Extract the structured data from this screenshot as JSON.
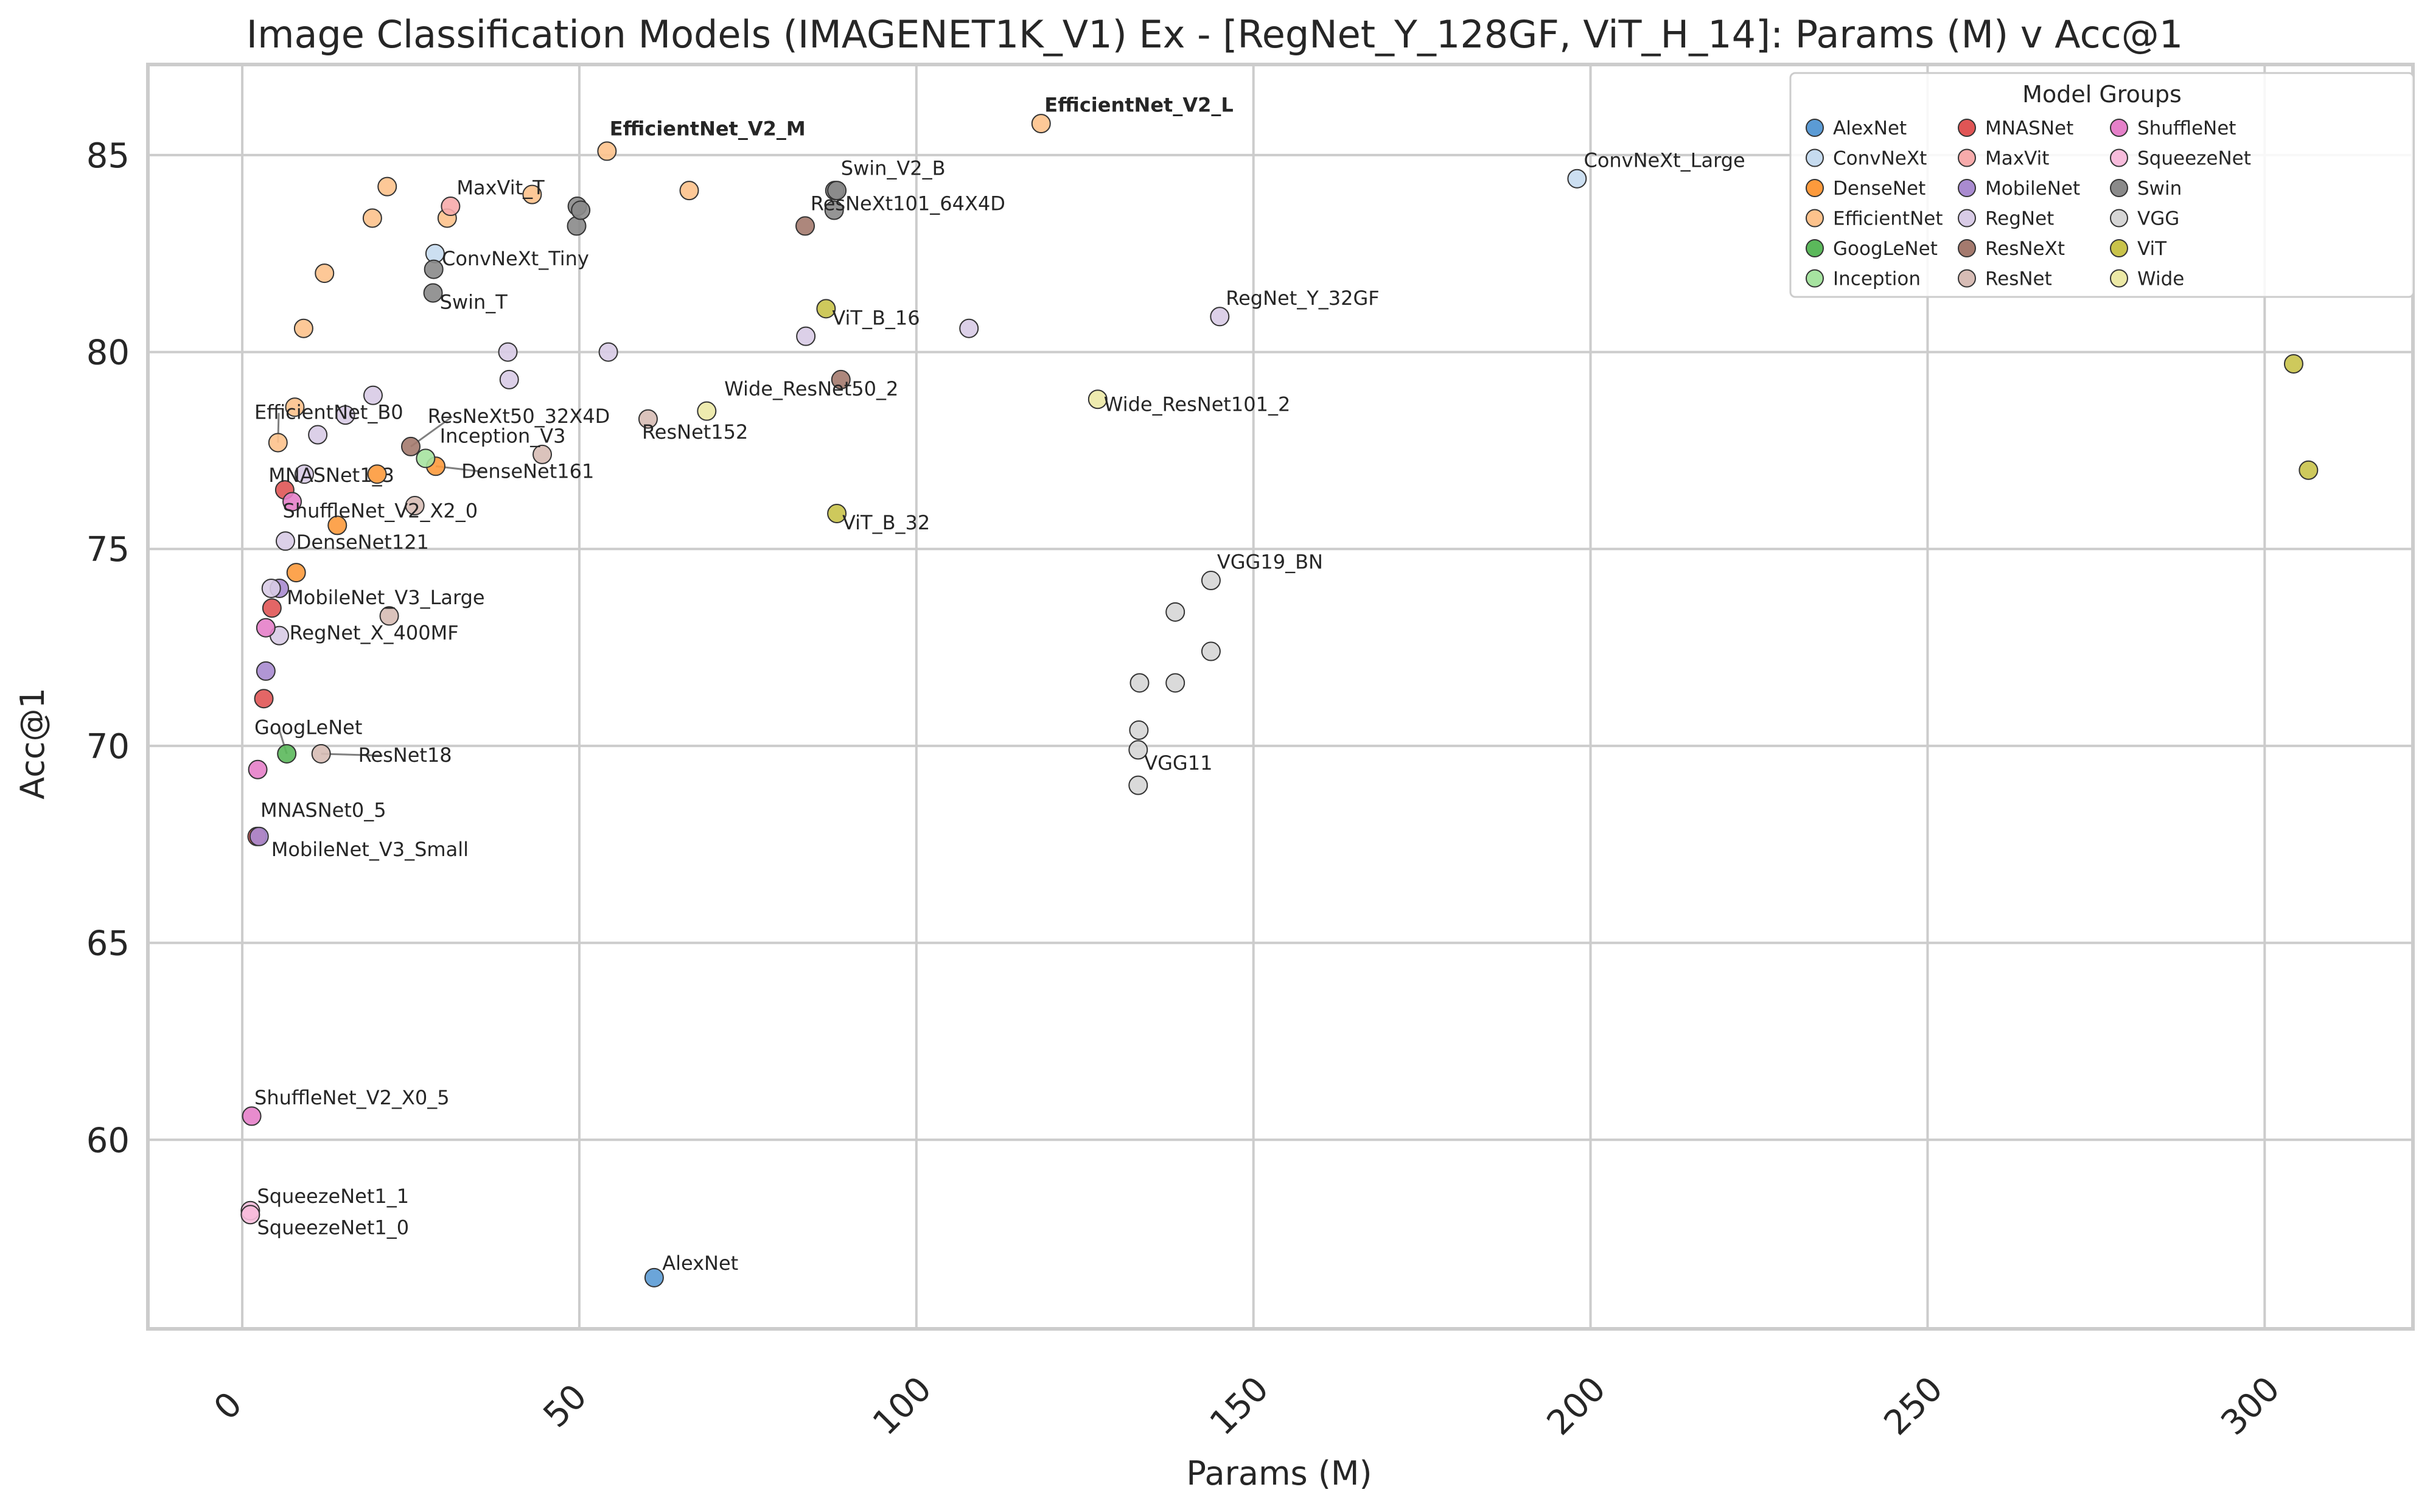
{
  "chart_data": {
    "type": "scatter",
    "title": "Image Classification Models (IMAGENET1K_V1) Ex - [RegNet_Y_128GF, ViT_H_14]: Params (M) v Acc@1",
    "xlabel": "Params (M)",
    "ylabel": "Acc@1",
    "xlim": [
      -14,
      322
    ],
    "ylim": [
      55.2,
      87.3
    ],
    "xticks": [
      "0",
      "50",
      "100",
      "150",
      "200",
      "250",
      "300"
    ],
    "yticks": [
      "60",
      "65",
      "70",
      "75",
      "80",
      "85"
    ],
    "grid": true,
    "legend": {
      "title": "Model Groups",
      "position": "top-right",
      "columns": 3
    },
    "groups": [
      {
        "name": "AlexNet",
        "color": "#5b9bd5"
      },
      {
        "name": "ConvNeXt",
        "color": "#c6dbef"
      },
      {
        "name": "DenseNet",
        "color": "#fd9a3c"
      },
      {
        "name": "EfficientNet",
        "color": "#fdc28c"
      },
      {
        "name": "GoogLeNet",
        "color": "#5bb85b"
      },
      {
        "name": "Inception",
        "color": "#a6e3a0"
      },
      {
        "name": "MNASNet",
        "color": "#e05555"
      },
      {
        "name": "MaxVit",
        "color": "#f7abab"
      },
      {
        "name": "MobileNet",
        "color": "#a98bd0"
      },
      {
        "name": "RegNet",
        "color": "#d8cbe6"
      },
      {
        "name": "ResNeXt",
        "color": "#a47a6e"
      },
      {
        "name": "ResNet",
        "color": "#d7bcb5"
      },
      {
        "name": "ShuffleNet",
        "color": "#e580c9"
      },
      {
        "name": "SqueezeNet",
        "color": "#f8bcdc"
      },
      {
        "name": "Swin",
        "color": "#8a8a8a"
      },
      {
        "name": "VGG",
        "color": "#d6d6d6"
      },
      {
        "name": "ViT",
        "color": "#c9c34a"
      },
      {
        "name": "Wide",
        "color": "#ece9a6"
      }
    ],
    "points": [
      {
        "x": 61.1,
        "y": 56.5,
        "group": "AlexNet",
        "label": "AlexNet",
        "lx": 62.3,
        "ly": 56.7
      },
      {
        "x": 198.0,
        "y": 84.4,
        "group": "ConvNeXt",
        "label": "ConvNeXt_Large",
        "lx": 199.0,
        "ly": 84.7
      },
      {
        "x": 28.6,
        "y": 82.5,
        "group": "ConvNeXt",
        "label": "ConvNeXt_Tiny",
        "lx": 29.6,
        "ly": 82.2
      },
      {
        "x": 8.0,
        "y": 74.4,
        "group": "DenseNet",
        "label": "DenseNet121",
        "lx": 8.0,
        "ly": 75.0
      },
      {
        "x": 28.7,
        "y": 77.1,
        "group": "DenseNet",
        "label": "DenseNet161",
        "lx": 32.5,
        "ly": 76.8
      },
      {
        "x": 14.1,
        "y": 75.6,
        "group": "DenseNet"
      },
      {
        "x": 20.0,
        "y": 76.9,
        "group": "DenseNet"
      },
      {
        "x": 54.1,
        "y": 85.1,
        "group": "EfficientNet",
        "label": "EfficientNet_V2_M",
        "lx": 54.5,
        "ly": 85.5,
        "bold": true
      },
      {
        "x": 118.5,
        "y": 85.8,
        "group": "EfficientNet",
        "label": "EfficientNet_V2_L",
        "lx": 119.0,
        "ly": 86.1,
        "bold": true
      },
      {
        "x": 5.3,
        "y": 77.7,
        "group": "EfficientNet",
        "label": "EfficientNet_B0",
        "lx": 1.8,
        "ly": 78.3
      },
      {
        "x": 7.8,
        "y": 78.6,
        "group": "EfficientNet"
      },
      {
        "x": 9.1,
        "y": 80.6,
        "group": "EfficientNet"
      },
      {
        "x": 12.2,
        "y": 82.0,
        "group": "EfficientNet"
      },
      {
        "x": 19.3,
        "y": 83.4,
        "group": "EfficientNet"
      },
      {
        "x": 30.4,
        "y": 83.4,
        "group": "EfficientNet"
      },
      {
        "x": 43.0,
        "y": 84.0,
        "group": "EfficientNet"
      },
      {
        "x": 66.3,
        "y": 84.1,
        "group": "EfficientNet"
      },
      {
        "x": 21.5,
        "y": 84.2,
        "group": "EfficientNet"
      },
      {
        "x": 6.6,
        "y": 69.8,
        "group": "GoogLeNet",
        "label": "GoogLeNet",
        "lx": 1.8,
        "ly": 70.3
      },
      {
        "x": 27.2,
        "y": 77.3,
        "group": "Inception",
        "label": "Inception_V3",
        "lx": 29.3,
        "ly": 77.7
      },
      {
        "x": 30.9,
        "y": 83.7,
        "group": "MaxVit",
        "label": "MaxVit_T",
        "lx": 31.8,
        "ly": 84.0
      },
      {
        "x": 2.2,
        "y": 67.7,
        "group": "MNASNet",
        "label": "MNASNet0_5",
        "lx": 2.7,
        "ly": 68.2
      },
      {
        "x": 3.2,
        "y": 71.2,
        "group": "MNASNet"
      },
      {
        "x": 4.4,
        "y": 73.5,
        "group": "MNASNet"
      },
      {
        "x": 6.3,
        "y": 76.5,
        "group": "MNASNet",
        "label": "MNASNet1_3",
        "lx": 3.9,
        "ly": 76.7
      },
      {
        "x": 2.5,
        "y": 67.7,
        "group": "MobileNet",
        "label": "MobileNet_V3_Small",
        "lx": 4.3,
        "ly": 67.2
      },
      {
        "x": 3.5,
        "y": 71.9,
        "group": "MobileNet"
      },
      {
        "x": 5.5,
        "y": 74.0,
        "group": "MobileNet",
        "label": "MobileNet_V3_Large",
        "lx": 6.6,
        "ly": 73.6
      },
      {
        "x": 145.0,
        "y": 80.9,
        "group": "RegNet",
        "label": "RegNet_Y_32GF",
        "lx": 145.9,
        "ly": 81.2
      },
      {
        "x": 5.5,
        "y": 72.8,
        "group": "RegNet",
        "label": "RegNet_X_400MF",
        "lx": 7.0,
        "ly": 72.7
      },
      {
        "x": 4.3,
        "y": 74.0,
        "group": "RegNet"
      },
      {
        "x": 6.4,
        "y": 75.2,
        "group": "RegNet"
      },
      {
        "x": 9.2,
        "y": 76.9,
        "group": "RegNet"
      },
      {
        "x": 11.2,
        "y": 77.9,
        "group": "RegNet"
      },
      {
        "x": 15.3,
        "y": 78.4,
        "group": "RegNet"
      },
      {
        "x": 19.4,
        "y": 78.9,
        "group": "RegNet"
      },
      {
        "x": 39.4,
        "y": 80.0,
        "group": "RegNet"
      },
      {
        "x": 39.6,
        "y": 79.3,
        "group": "RegNet"
      },
      {
        "x": 54.3,
        "y": 80.0,
        "group": "RegNet"
      },
      {
        "x": 83.6,
        "y": 80.4,
        "group": "RegNet"
      },
      {
        "x": 107.8,
        "y": 80.6,
        "group": "RegNet"
      },
      {
        "x": 25.0,
        "y": 77.6,
        "group": "ResNeXt",
        "label": "ResNeXt50_32X4D",
        "lx": 27.5,
        "ly": 78.2
      },
      {
        "x": 83.5,
        "y": 83.2,
        "group": "ResNeXt",
        "label": "ResNeXt101_64X4D",
        "lx": 84.3,
        "ly": 83.6
      },
      {
        "x": 88.8,
        "y": 79.3,
        "group": "ResNeXt"
      },
      {
        "x": 11.7,
        "y": 69.8,
        "group": "ResNet",
        "label": "ResNet18",
        "lx": 17.2,
        "ly": 69.6
      },
      {
        "x": 60.2,
        "y": 78.3,
        "group": "ResNet",
        "label": "ResNet152",
        "lx": 59.3,
        "ly": 77.8
      },
      {
        "x": 21.8,
        "y": 73.3,
        "group": "ResNet"
      },
      {
        "x": 25.6,
        "y": 76.1,
        "group": "ResNet"
      },
      {
        "x": 44.5,
        "y": 77.4,
        "group": "ResNet"
      },
      {
        "x": 1.4,
        "y": 60.6,
        "group": "ShuffleNet",
        "label": "ShuffleNet_V2_X0_5",
        "lx": 1.8,
        "ly": 60.9
      },
      {
        "x": 2.3,
        "y": 69.4,
        "group": "ShuffleNet"
      },
      {
        "x": 3.5,
        "y": 73.0,
        "group": "ShuffleNet"
      },
      {
        "x": 7.4,
        "y": 76.2,
        "group": "ShuffleNet",
        "label": "ShuffleNet_V2_X2_0",
        "lx": 6.0,
        "ly": 75.8
      },
      {
        "x": 1.2,
        "y": 58.2,
        "group": "SqueezeNet",
        "label": "SqueezeNet1_1",
        "lx": 2.2,
        "ly": 58.4
      },
      {
        "x": 1.2,
        "y": 58.1,
        "group": "SqueezeNet",
        "label": "SqueezeNet1_0",
        "lx": 2.2,
        "ly": 57.6
      },
      {
        "x": 28.3,
        "y": 81.5,
        "group": "Swin",
        "label": "Swin_T",
        "lx": 29.3,
        "ly": 81.1
      },
      {
        "x": 87.9,
        "y": 84.1,
        "group": "Swin",
        "label": "Swin_V2_B",
        "lx": 88.8,
        "ly": 84.5
      },
      {
        "x": 28.4,
        "y": 82.1,
        "group": "Swin"
      },
      {
        "x": 49.6,
        "y": 83.2,
        "group": "Swin"
      },
      {
        "x": 49.7,
        "y": 83.7,
        "group": "Swin"
      },
      {
        "x": 50.2,
        "y": 83.6,
        "group": "Swin"
      },
      {
        "x": 87.8,
        "y": 83.6,
        "group": "Swin"
      },
      {
        "x": 88.2,
        "y": 84.1,
        "group": "Swin"
      },
      {
        "x": 143.7,
        "y": 74.2,
        "group": "VGG",
        "label": "VGG19_BN",
        "lx": 144.6,
        "ly": 74.5
      },
      {
        "x": 132.9,
        "y": 69.0,
        "group": "VGG",
        "label": "VGG11",
        "lx": 133.8,
        "ly": 69.4
      },
      {
        "x": 132.9,
        "y": 69.9,
        "group": "VGG"
      },
      {
        "x": 133.0,
        "y": 70.4,
        "group": "VGG"
      },
      {
        "x": 133.1,
        "y": 71.6,
        "group": "VGG"
      },
      {
        "x": 138.4,
        "y": 71.6,
        "group": "VGG"
      },
      {
        "x": 138.4,
        "y": 73.4,
        "group": "VGG"
      },
      {
        "x": 143.7,
        "y": 72.4,
        "group": "VGG"
      },
      {
        "x": 86.6,
        "y": 81.1,
        "group": "ViT",
        "label": "ViT_B_16",
        "lx": 87.5,
        "ly": 80.7
      },
      {
        "x": 88.2,
        "y": 75.9,
        "group": "ViT",
        "label": "ViT_B_32",
        "lx": 89.0,
        "ly": 75.5
      },
      {
        "x": 304.3,
        "y": 79.7,
        "group": "ViT"
      },
      {
        "x": 306.5,
        "y": 77.0,
        "group": "ViT"
      },
      {
        "x": 68.9,
        "y": 78.5,
        "group": "Wide",
        "label": "Wide_ResNet50_2",
        "lx": 71.5,
        "ly": 78.9
      },
      {
        "x": 126.9,
        "y": 78.8,
        "group": "Wide",
        "label": "Wide_ResNet101_2",
        "lx": 127.8,
        "ly": 78.5
      }
    ]
  }
}
